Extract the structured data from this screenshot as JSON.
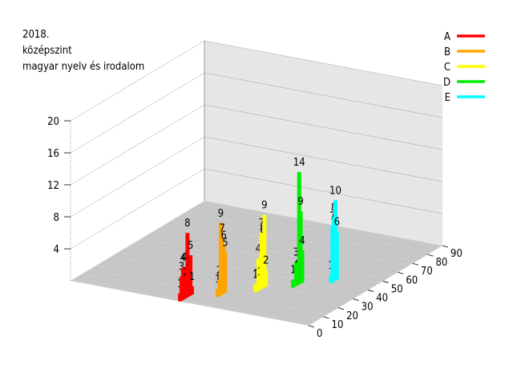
{
  "chart_data": {
    "type": "bar3d",
    "title_lines": [
      "2018.",
      "középszint",
      "magyar nyelv és irodalom"
    ],
    "z_ticks": [
      "4",
      "8",
      "12",
      "16",
      "20"
    ],
    "x_ticks": [
      "0",
      "10",
      "20",
      "30",
      "40",
      "50",
      "60",
      "70",
      "80",
      "90"
    ],
    "zlim": [
      0,
      20
    ],
    "xlim": [
      0,
      90
    ],
    "series": [
      {
        "name": "A",
        "color": "#ff0000",
        "labels": [
          "1",
          "3",
          "4",
          "4",
          "2",
          "8",
          "3",
          "5",
          "1"
        ],
        "x": [
          0,
          1,
          2,
          3,
          4,
          5,
          6,
          7,
          8
        ],
        "values": [
          1,
          3,
          4,
          4,
          2,
          8,
          3,
          5,
          1
        ]
      },
      {
        "name": "B",
        "color": "#ffa500",
        "labels": [
          "1",
          "2",
          "9",
          "7",
          "6",
          "5"
        ],
        "x": [
          10,
          11,
          12,
          13,
          14,
          15
        ],
        "values": [
          1,
          2,
          9,
          7,
          6,
          5
        ]
      },
      {
        "name": "C",
        "color": "#ffff00",
        "labels": [
          "1",
          "1",
          "4",
          "1",
          "7",
          "6",
          "9",
          "2"
        ],
        "x": [
          20,
          21,
          22,
          23,
          24,
          25,
          26,
          27
        ],
        "values": [
          1,
          1,
          4,
          1,
          7,
          6,
          9,
          2
        ]
      },
      {
        "name": "D",
        "color": "#00ee00",
        "labels": [
          "1",
          "3",
          "2",
          "14",
          "9",
          "4"
        ],
        "x": [
          30,
          32,
          33,
          34,
          35,
          36
        ],
        "values": [
          1,
          3,
          2,
          14,
          9,
          4
        ]
      },
      {
        "name": "E",
        "color": "#00ffff",
        "labels": [
          "1",
          "7",
          "8",
          "10",
          "6"
        ],
        "x": [
          40,
          41,
          42,
          43,
          44
        ],
        "values": [
          1,
          7,
          8,
          10,
          6
        ]
      }
    ],
    "legend_position": "top-right",
    "grid": true
  }
}
